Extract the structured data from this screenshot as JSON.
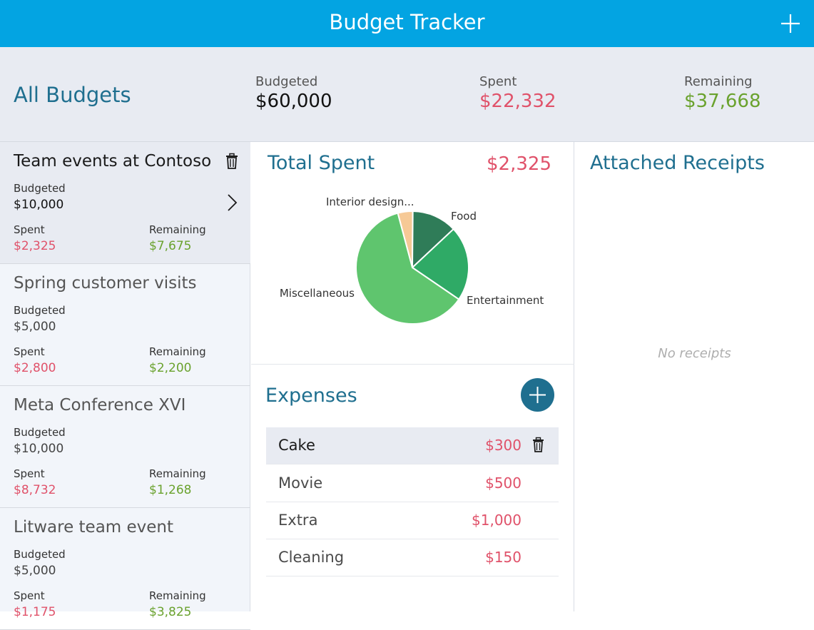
{
  "app": {
    "title": "Budget Tracker"
  },
  "summary": {
    "heading": "All Budgets",
    "budgeted_label": "Budgeted",
    "budgeted_value": "$60,000",
    "spent_label": "Spent",
    "spent_value": "$22,332",
    "remaining_label": "Remaining",
    "remaining_value": "$37,668"
  },
  "budgets": [
    {
      "name": "Team events at Contoso",
      "budgeted_label": "Budgeted",
      "budgeted": "$10,000",
      "spent_label": "Spent",
      "spent": "$2,325",
      "remaining_label": "Remaining",
      "remaining": "$7,675",
      "selected": true
    },
    {
      "name": "Spring customer visits",
      "budgeted_label": "Budgeted",
      "budgeted": "$5,000",
      "spent_label": "Spent",
      "spent": "$2,800",
      "remaining_label": "Remaining",
      "remaining": "$2,200"
    },
    {
      "name": "Meta Conference XVI",
      "budgeted_label": "Budgeted",
      "budgeted": "$10,000",
      "spent_label": "Spent",
      "spent": "$8,732",
      "remaining_label": "Remaining",
      "remaining": "$1,268"
    },
    {
      "name": "Litware team event",
      "budgeted_label": "Budgeted",
      "budgeted": "$5,000",
      "spent_label": "Spent",
      "spent": "$1,175",
      "remaining_label": "Remaining",
      "remaining": "$3,825"
    }
  ],
  "total_spent": {
    "title": "Total Spent",
    "value": "$2,325"
  },
  "chart_data": {
    "type": "pie",
    "title": "",
    "labels": [
      "Interior design...",
      "Food",
      "Entertainment",
      "Miscellaneous"
    ],
    "values": [
      100,
      300,
      500,
      1425
    ],
    "colors": [
      "#f6c996",
      "#2f7c58",
      "#2faa66",
      "#5fc56e"
    ]
  },
  "expenses": {
    "title": "Expenses",
    "items": [
      {
        "name": "Cake",
        "amount": "$300",
        "selected": true
      },
      {
        "name": "Movie",
        "amount": "$500"
      },
      {
        "name": "Extra",
        "amount": "$1,000"
      },
      {
        "name": "Cleaning",
        "amount": "$150"
      }
    ]
  },
  "receipts": {
    "title": "Attached Receipts",
    "empty_text": "No receipts"
  },
  "icons": {
    "add": "plus-icon",
    "delete": "trash-icon",
    "open": "chevron-right-icon"
  }
}
